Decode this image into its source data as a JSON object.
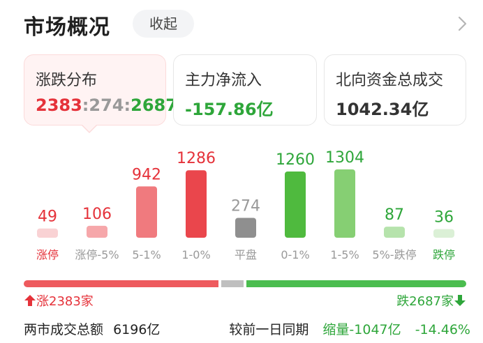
{
  "header": {
    "title": "市场概况",
    "collapse_label": "收起"
  },
  "cards": {
    "distribution": {
      "label": "涨跌分布",
      "up": "2383",
      "flat": "274",
      "down": "2687",
      "sep1": ":",
      "sep2": ":"
    },
    "main_flow": {
      "label": "主力净流入",
      "value": "-157.86亿"
    },
    "northbound": {
      "label": "北向资金总成交",
      "value": "1042.34亿"
    }
  },
  "chart_data": {
    "type": "bar",
    "categories": [
      "涨停",
      "涨停-5%",
      "5-1%",
      "1-0%",
      "平盘",
      "0-1%",
      "1-5%",
      "5%-跌停",
      "跌停"
    ],
    "values": [
      49,
      106,
      942,
      1286,
      274,
      1260,
      1304,
      87,
      36
    ],
    "colors": [
      "#f9d2d4",
      "#f6a7aa",
      "#f07a7e",
      "#ea464c",
      "#8f8f8f",
      "#4fba3e",
      "#86cf73",
      "#b6e3ac",
      "#dbf0d6"
    ],
    "label_colors": [
      "#e5323a",
      "#e5323a",
      "#e5323a",
      "#e5323a",
      "#999999",
      "#2ea63a",
      "#2ea63a",
      "#2ea63a",
      "#2ea63a"
    ],
    "category_colors": [
      "#e5323a",
      "#999999",
      "#999999",
      "#999999",
      "#999999",
      "#999999",
      "#999999",
      "#999999",
      "#2ea63a"
    ],
    "ylim": [
      0,
      1304
    ]
  },
  "ratio_bar": {
    "up": 2383,
    "flat": 274,
    "down": 2687
  },
  "counts": {
    "up_label": "涨2383家",
    "down_label": "跌2687家"
  },
  "footer": {
    "turnover_label": "两市成交总额",
    "turnover_value": "6196亿",
    "compare_label": "较前一日同期",
    "change_amount": "缩量-1047亿",
    "change_pct": "-14.46%"
  }
}
